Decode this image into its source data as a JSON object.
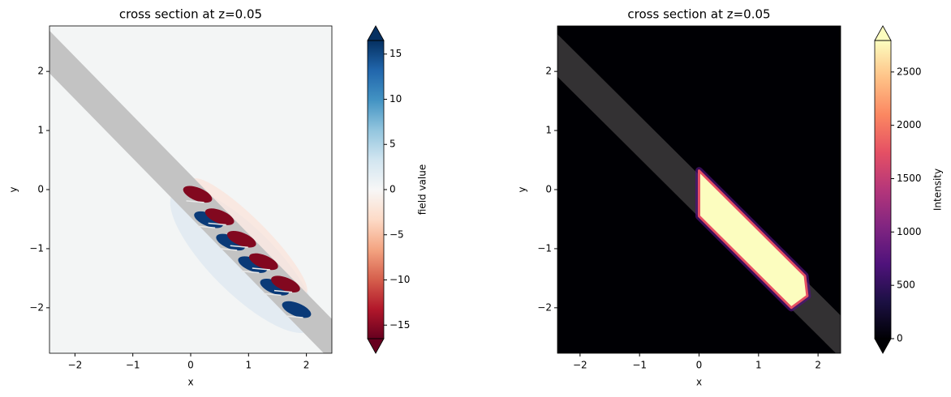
{
  "chart_data": [
    {
      "type": "heatmap",
      "title": "cross section at z=0.05",
      "xlabel": "x",
      "ylabel": "y",
      "xlim": [
        -2.44,
        2.44
      ],
      "ylim": [
        -2.77,
        2.77
      ],
      "xticks": [
        {
          "value": -2,
          "label": "−2"
        },
        {
          "value": -1,
          "label": "−1"
        },
        0,
        1,
        2
      ],
      "yticks": [
        {
          "value": -2,
          "label": "−2"
        },
        {
          "value": -1,
          "label": "−1"
        },
        0,
        1,
        2
      ],
      "colorbar": {
        "label": "field value",
        "lim": [
          -16.5,
          16.5
        ],
        "ticks": [
          {
            "value": -15,
            "label": "−15"
          },
          {
            "value": -10,
            "label": "−10"
          },
          {
            "value": -5,
            "label": "−5"
          },
          0,
          5,
          10,
          15
        ],
        "colors": [
          "#67001f",
          "#b2182b",
          "#d6604d",
          "#f4a582",
          "#fddbc7",
          "#f7f7f7",
          "#d1e5f0",
          "#92c5de",
          "#4393c3",
          "#2166ac",
          "#053061"
        ]
      }
    },
    {
      "type": "heatmap",
      "title": "cross section at z=0.05",
      "xlabel": "x",
      "ylabel": "y",
      "xlim": [
        -2.38,
        2.38
      ],
      "ylim": [
        -2.77,
        2.77
      ],
      "xticks": [
        {
          "value": -2,
          "label": "−2"
        },
        {
          "value": -1,
          "label": "−1"
        },
        0,
        1,
        2
      ],
      "yticks": [
        {
          "value": -2,
          "label": "−2"
        },
        {
          "value": -1,
          "label": "−1"
        },
        0,
        1,
        2
      ],
      "colorbar": {
        "label": "Intensity",
        "lim": [
          0,
          2795
        ],
        "ticks": [
          0,
          500,
          1000,
          1500,
          2000,
          2500
        ],
        "colors": [
          "#000004",
          "#1c1044",
          "#4f127b",
          "#812581",
          "#b5367a",
          "#e55064",
          "#fb8761",
          "#fec287",
          "#fcfdbf"
        ]
      }
    }
  ]
}
